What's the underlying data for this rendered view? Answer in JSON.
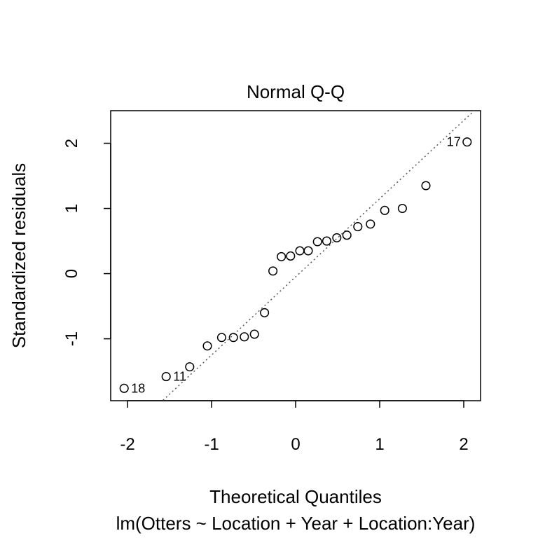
{
  "chart_data": {
    "type": "scatter",
    "title": "Normal Q-Q",
    "xlabel": "Theoretical Quantiles",
    "subtitle": "lm(Otters ~ Location + Year + Location:Year)",
    "ylabel": "Standardized residuals",
    "xlim": [
      -2.2,
      2.2
    ],
    "ylim": [
      -1.95,
      2.5
    ],
    "x_ticks": [
      "-2",
      "-1",
      "0",
      "1",
      "2"
    ],
    "y_ticks": [
      "-1",
      "0",
      "1",
      "2"
    ],
    "grid": false,
    "reference_line": {
      "style": "dotted",
      "slope": 1.2,
      "intercept": -0.05
    },
    "points": [
      {
        "x": -2.04,
        "y": -1.76,
        "label": "18"
      },
      {
        "x": -1.54,
        "y": -1.58,
        "label": "11"
      },
      {
        "x": -1.26,
        "y": -1.43
      },
      {
        "x": -1.05,
        "y": -1.11
      },
      {
        "x": -0.88,
        "y": -0.98
      },
      {
        "x": -0.74,
        "y": -0.98
      },
      {
        "x": -0.61,
        "y": -0.97
      },
      {
        "x": -0.49,
        "y": -0.93
      },
      {
        "x": -0.37,
        "y": -0.6
      },
      {
        "x": -0.27,
        "y": 0.04
      },
      {
        "x": -0.17,
        "y": 0.26
      },
      {
        "x": -0.06,
        "y": 0.27
      },
      {
        "x": 0.05,
        "y": 0.35
      },
      {
        "x": 0.15,
        "y": 0.35
      },
      {
        "x": 0.26,
        "y": 0.49
      },
      {
        "x": 0.37,
        "y": 0.5
      },
      {
        "x": 0.49,
        "y": 0.55
      },
      {
        "x": 0.61,
        "y": 0.59
      },
      {
        "x": 0.74,
        "y": 0.72
      },
      {
        "x": 0.89,
        "y": 0.76
      },
      {
        "x": 1.06,
        "y": 0.97
      },
      {
        "x": 1.27,
        "y": 1.0
      },
      {
        "x": 1.55,
        "y": 1.35
      },
      {
        "x": 2.04,
        "y": 2.02,
        "label": "17"
      }
    ]
  }
}
